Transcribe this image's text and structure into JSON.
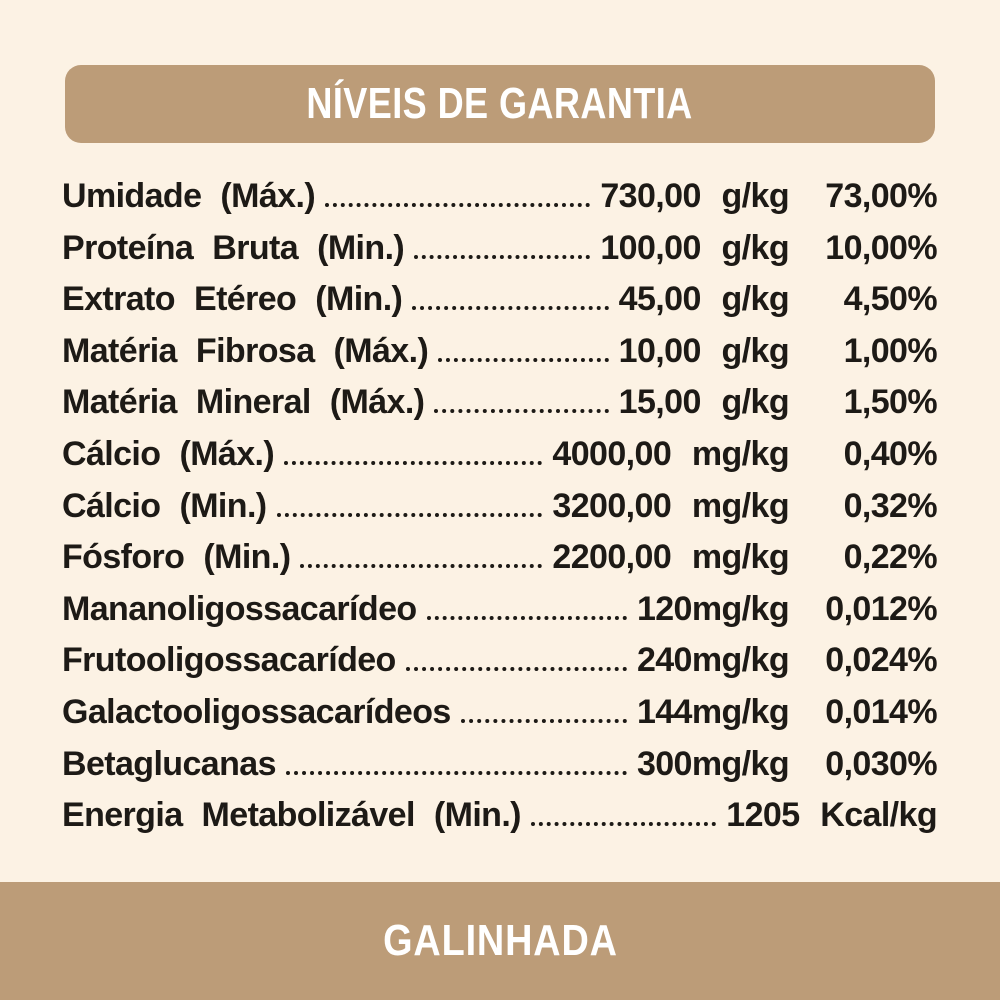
{
  "page": {
    "background": "#FCF2E4",
    "accent": "#BC9C78",
    "ink": "#1D1A16"
  },
  "header": {
    "title": "NÍVEIS DE GARANTIA"
  },
  "footer": {
    "title": "GALINHADA"
  },
  "table": {
    "rows": [
      {
        "label": "Umidade (Máx.)",
        "value": "730,00 g/kg",
        "percent": "73,00%"
      },
      {
        "label": "Proteína Bruta (Min.)",
        "value": "100,00 g/kg",
        "percent": "10,00%"
      },
      {
        "label": "Extrato Etéreo (Min.)",
        "value": "45,00 g/kg",
        "percent": "4,50%"
      },
      {
        "label": "Matéria Fibrosa (Máx.)",
        "value": "10,00 g/kg",
        "percent": "1,00%"
      },
      {
        "label": "Matéria Mineral (Máx.)",
        "value": "15,00 g/kg",
        "percent": "1,50%"
      },
      {
        "label": "Cálcio (Máx.)",
        "value": "4000,00 mg/kg",
        "percent": "0,40%"
      },
      {
        "label": "Cálcio (Min.)",
        "value": "3200,00 mg/kg",
        "percent": "0,32%"
      },
      {
        "label": "Fósforo (Min.)",
        "value": "2200,00 mg/kg",
        "percent": "0,22%"
      },
      {
        "label": "Mananoligossacarídeo",
        "value": "120mg/kg",
        "percent": "0,012%"
      },
      {
        "label": "Frutooligossacarídeo",
        "value": "240mg/kg",
        "percent": "0,024%"
      },
      {
        "label": "Galactooligossacarídeos",
        "value": "144mg/kg",
        "percent": "0,014%"
      },
      {
        "label": "Betaglucanas",
        "value": "300mg/kg",
        "percent": "0,030%"
      },
      {
        "label": "Energia Metabolizável (Min.)",
        "value": "1205 Kcal/kg",
        "percent": ""
      }
    ]
  }
}
